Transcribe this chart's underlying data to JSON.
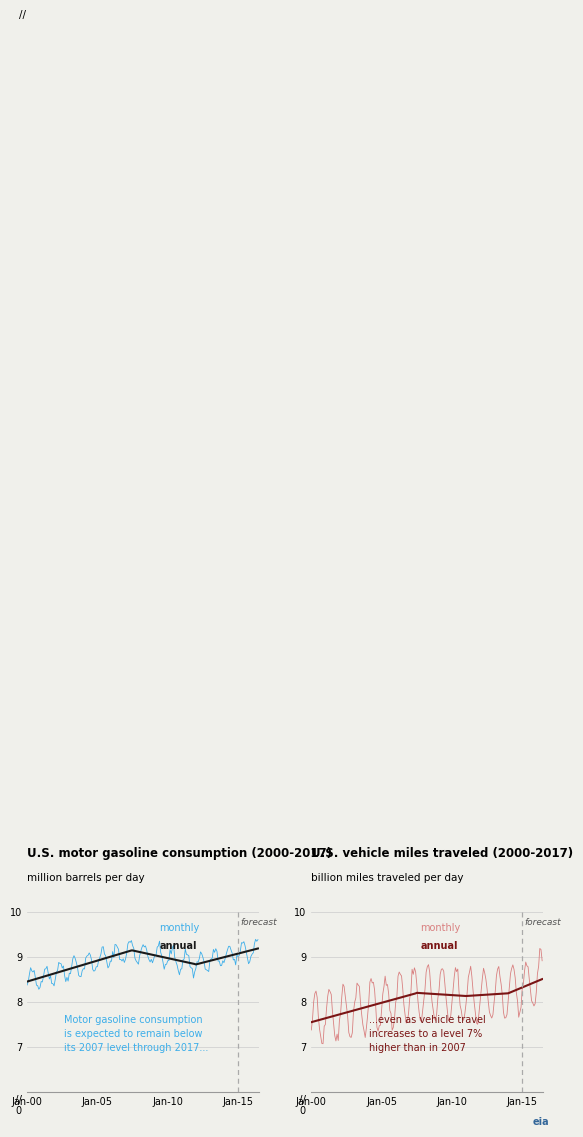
{
  "left_title": "U.S. motor gasoline consumption (2000-2017)",
  "left_ylabel": "million barrels per day",
  "right_title": "U.S. vehicle miles traveled (2000-2017)",
  "right_ylabel": "billion miles traveled per day",
  "forecast_label": "forecast",
  "left_annotation": "Motor gasoline consumption\nis expected to remain below\nits 2007 level through 2017...",
  "right_annotation": "...even as vehicle travel\nincreases to a level 7%\nhigher than in 2007",
  "left_monthly_color": "#3daee9",
  "left_annual_color": "#1a1a1a",
  "right_monthly_color": "#d98080",
  "right_annual_color": "#7a1515",
  "forecast_line_color": "#aaaaaa",
  "ylim": [
    6,
    10
  ],
  "yticks": [
    6,
    7,
    8,
    9,
    10
  ],
  "title_fontsize": 8.5,
  "label_fontsize": 7.5,
  "axis_fontsize": 7.0,
  "annotation_fontsize": 7.0,
  "bg_color": "#f0f0eb",
  "grid_color": "#cccccc"
}
